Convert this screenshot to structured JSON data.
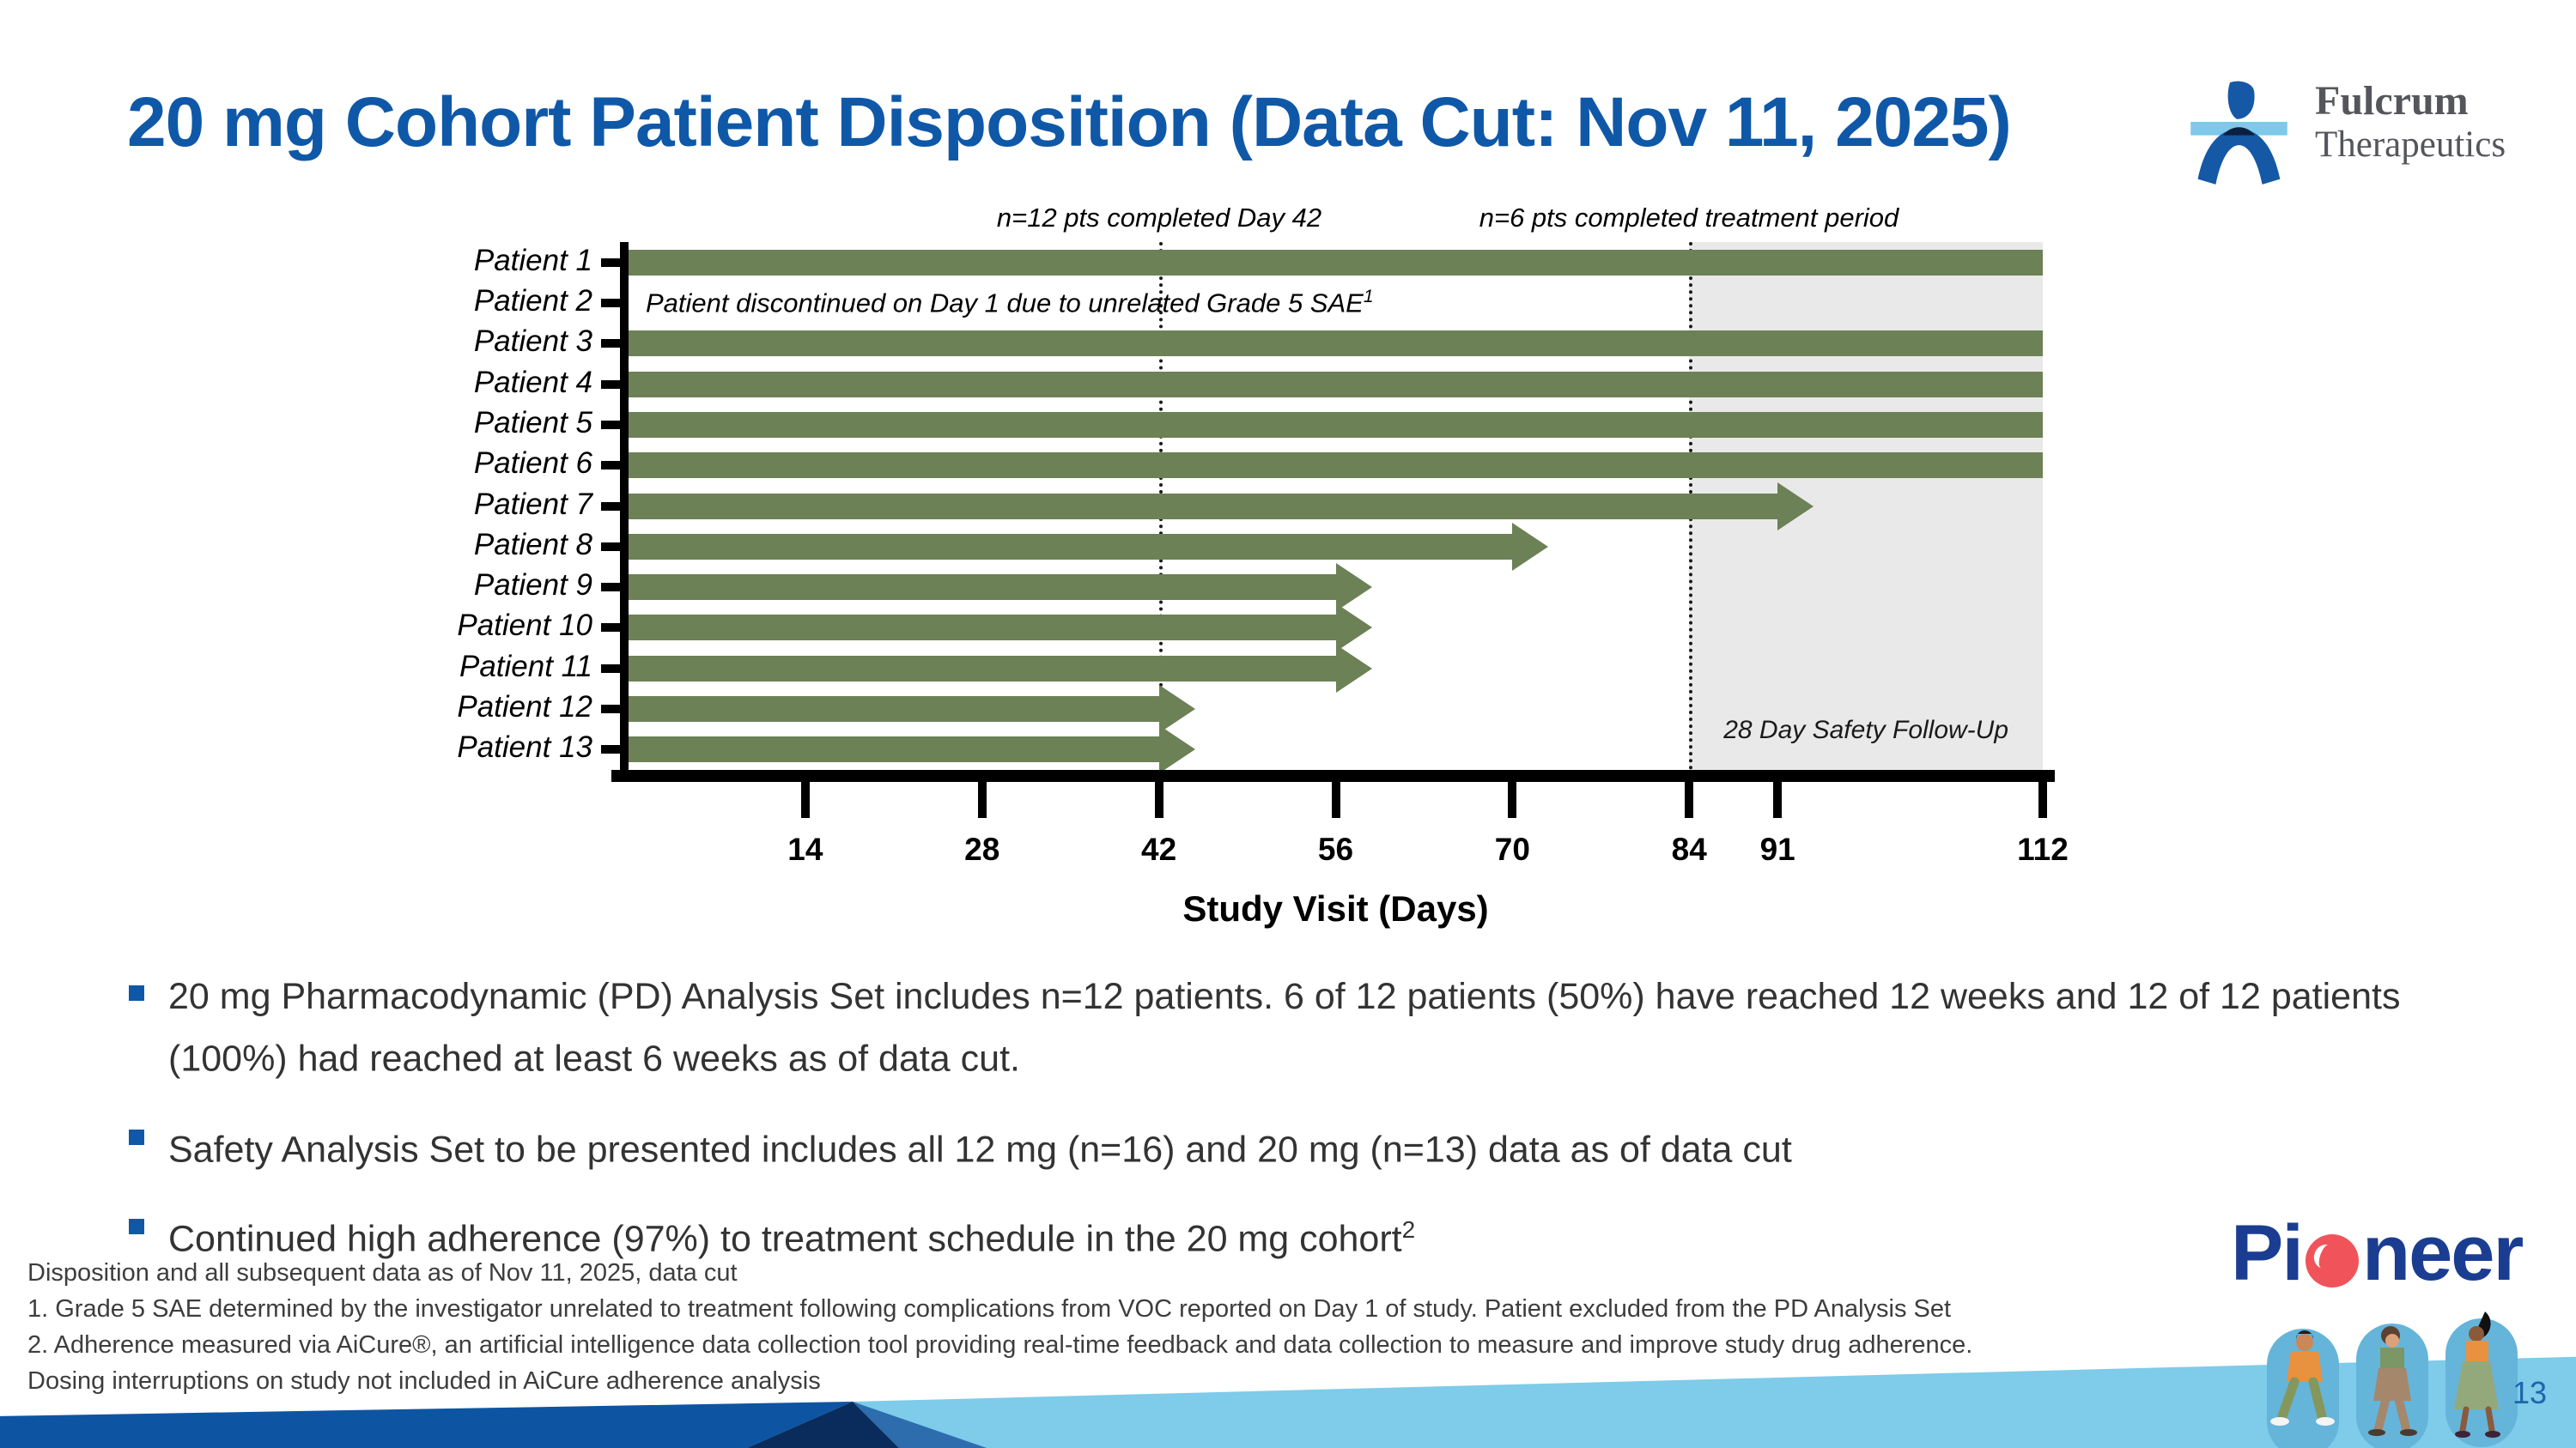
{
  "slide": {
    "title": "20 mg Cohort Patient Disposition (Data Cut: Nov 11, 2025)",
    "page_number": "13"
  },
  "logo": {
    "name_line1": "Fulcrum",
    "name_line2": "Therapeutics"
  },
  "chart_data": {
    "type": "bar",
    "orientation": "horizontal",
    "xlabel": "Study Visit (Days)",
    "x_ticks": [
      14,
      28,
      42,
      56,
      70,
      84,
      91,
      112
    ],
    "x_max": 112,
    "bar_color": "#6C8155",
    "patients": [
      {
        "label": "Patient 1",
        "end_day": 112,
        "ongoing": false
      },
      {
        "label": "Patient 2",
        "end_day": 0,
        "ongoing": false
      },
      {
        "label": "Patient 3",
        "end_day": 112,
        "ongoing": false
      },
      {
        "label": "Patient 4",
        "end_day": 112,
        "ongoing": false
      },
      {
        "label": "Patient 5",
        "end_day": 112,
        "ongoing": false
      },
      {
        "label": "Patient 6",
        "end_day": 112,
        "ongoing": false
      },
      {
        "label": "Patient 7",
        "end_day": 91,
        "ongoing": true
      },
      {
        "label": "Patient 8",
        "end_day": 70,
        "ongoing": true
      },
      {
        "label": "Patient 9",
        "end_day": 56,
        "ongoing": true
      },
      {
        "label": "Patient 10",
        "end_day": 56,
        "ongoing": true
      },
      {
        "label": "Patient 11",
        "end_day": 56,
        "ongoing": true
      },
      {
        "label": "Patient 12",
        "end_day": 42,
        "ongoing": true
      },
      {
        "label": "Patient 13",
        "end_day": 42,
        "ongoing": true
      }
    ],
    "annotations": [
      {
        "text": "n=12 pts completed Day 42",
        "day": 42
      },
      {
        "text": "n=6 pts completed treatment period",
        "day": 84
      }
    ],
    "reference_lines_days": [
      42,
      84
    ],
    "shaded_region": {
      "start_day": 84,
      "end_day": 112,
      "color": "#E9E9E9",
      "label": "28 Day Safety Follow-Up"
    },
    "patient2_note": {
      "text": "Patient discontinued on Day 1 due to unrelated Grade 5 SAE",
      "superscript": "1"
    }
  },
  "bullets": [
    {
      "text": "20 mg Pharmacodynamic (PD) Analysis Set includes n=12 patients. 6 of 12 patients (50%) have reached 12 weeks and 12 of 12 patients (100%) had reached at least 6 weeks as of data cut.",
      "sup": ""
    },
    {
      "text": "Safety Analysis Set to be presented includes all 12 mg (n=16) and 20 mg (n=13) data as of data cut",
      "sup": ""
    },
    {
      "text": "Continued high adherence (97%) to treatment schedule in the 20 mg cohort",
      "sup": "2"
    }
  ],
  "footnotes": [
    "Disposition and all subsequent data as of Nov 11, 2025, data cut",
    "1. Grade 5 SAE determined by the investigator unrelated to treatment following complications from VOC reported on Day 1 of study. Patient excluded from the PD Analysis Set",
    "2. Adherence measured via AiCure®, an artificial intelligence data collection tool providing real-time feedback and data collection to measure and improve study drug adherence.",
    "Dosing interruptions on study not included in AiCure adherence analysis"
  ],
  "pioneer": {
    "full_name": "Pioneer",
    "prefix": "Pi",
    "suffix": "neer"
  },
  "colors": {
    "title_blue": "#0F58A8",
    "bar_green": "#6C8155",
    "shade_gray": "#E9E9E9",
    "band_light_blue": "#7ECBEA",
    "wedge_dark_blue": "#0D55A2",
    "pioneer_blue": "#1B3D91",
    "pioneer_red": "#F0545A"
  }
}
